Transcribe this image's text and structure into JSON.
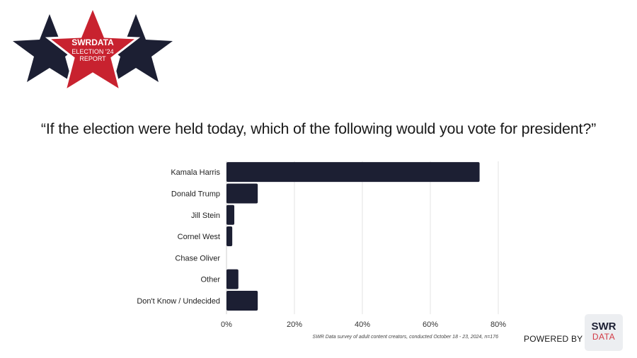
{
  "logo": {
    "line1": "SWRDATA",
    "line2": "ELECTION '24",
    "line3": "REPORT",
    "colors": {
      "navy": "#1c1f33",
      "red": "#c8222f"
    }
  },
  "question": "“If the election were held today, which of the following would you vote for president?”",
  "chart_data": {
    "type": "bar",
    "orientation": "horizontal",
    "categories": [
      "Kamala Harris",
      "Donald Trump",
      "Jill Stein",
      "Cornel West",
      "Chase Oliver",
      "Other",
      "Don't Know / Undecided"
    ],
    "values": [
      74.5,
      9.2,
      2.3,
      1.7,
      0,
      3.5,
      9.2
    ],
    "xlim": [
      0,
      80
    ],
    "xticks": [
      "0%",
      "20%",
      "40%",
      "60%",
      "80%"
    ],
    "grid": true,
    "bar_color": "#1c1f33"
  },
  "footnote": "SWR Data survey of adult content creators, conducted October 18 - 23, 2024, n=176",
  "branding": {
    "powered_by": "POWERED BY",
    "badge_top": "SWR",
    "badge_bottom": "DATA"
  }
}
